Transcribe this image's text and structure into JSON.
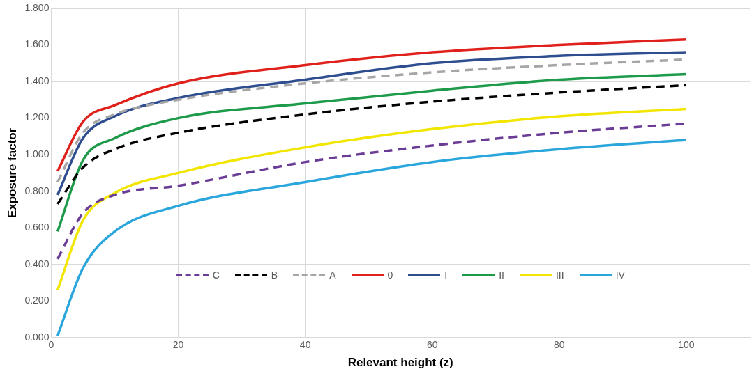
{
  "chart_data": {
    "type": "line",
    "xlabel": "Relevant height (z)",
    "ylabel": "Exposure factor",
    "x": [
      1,
      5,
      10,
      20,
      40,
      60,
      80,
      100
    ],
    "xlim": [
      0,
      110
    ],
    "xticks": [
      0,
      20,
      40,
      60,
      80,
      100
    ],
    "ylim": [
      0,
      1.8
    ],
    "yticks": [
      {
        "value": 0,
        "label": "0.000"
      },
      {
        "value": 0.2,
        "label": "0.200"
      },
      {
        "value": 0.4,
        "label": "0.400"
      },
      {
        "value": 0.6,
        "label": "0.600"
      },
      {
        "value": 0.8,
        "label": "0.800"
      },
      {
        "value": 1.0,
        "label": "1.000"
      },
      {
        "value": 1.2,
        "label": "1.200"
      },
      {
        "value": 1.4,
        "label": "1.400"
      },
      {
        "value": 1.6,
        "label": "1.600"
      },
      {
        "value": 1.8,
        "label": "1.800"
      }
    ],
    "grid": true,
    "legend": "bottom",
    "marker": "none",
    "series": [
      {
        "name": "C",
        "color": "#6a3c96",
        "line_style": "dashed",
        "values": [
          0.43,
          0.68,
          0.78,
          0.83,
          0.96,
          1.05,
          1.12,
          1.17
        ]
      },
      {
        "name": "B",
        "color": "#000000",
        "line_style": "dashed",
        "values": [
          0.73,
          0.93,
          1.03,
          1.12,
          1.22,
          1.29,
          1.34,
          1.38
        ]
      },
      {
        "name": "A",
        "color": "#a6a6a6",
        "line_style": "dashed",
        "values": [
          0.85,
          1.12,
          1.22,
          1.3,
          1.39,
          1.45,
          1.49,
          1.52
        ]
      },
      {
        "name": "0",
        "color": "#e0201b",
        "line_style": "solid",
        "values": [
          0.91,
          1.18,
          1.27,
          1.39,
          1.49,
          1.56,
          1.6,
          1.63
        ]
      },
      {
        "name": "I",
        "color": "#2e4e8f",
        "line_style": "solid",
        "values": [
          0.78,
          1.09,
          1.21,
          1.31,
          1.41,
          1.5,
          1.54,
          1.56
        ]
      },
      {
        "name": "II",
        "color": "#1d9a4a",
        "line_style": "solid",
        "values": [
          0.58,
          0.97,
          1.09,
          1.2,
          1.28,
          1.35,
          1.41,
          1.44
        ]
      },
      {
        "name": "III",
        "color": "#f2e600",
        "line_style": "solid",
        "values": [
          0.26,
          0.64,
          0.79,
          0.9,
          1.04,
          1.14,
          1.21,
          1.25
        ]
      },
      {
        "name": "IV",
        "color": "#2aa6dc",
        "line_style": "solid",
        "values": [
          0.01,
          0.38,
          0.58,
          0.72,
          0.85,
          0.96,
          1.03,
          1.08
        ]
      }
    ]
  }
}
